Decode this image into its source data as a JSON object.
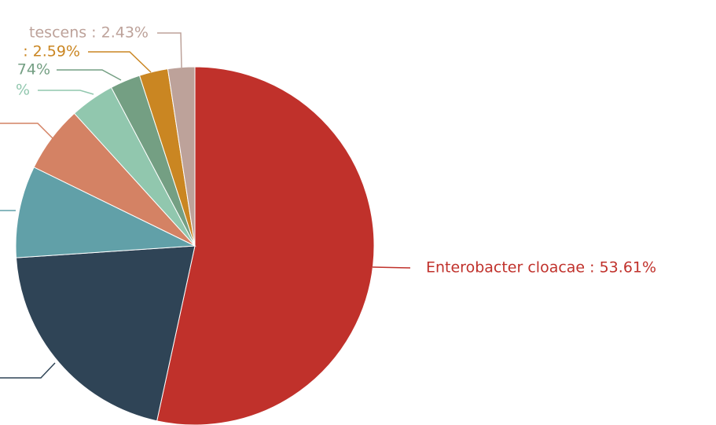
{
  "chart_data": {
    "type": "pie",
    "title": "",
    "slices": [
      {
        "label": "Enterobacter  cloacae : 53.61%",
        "value": 53.61,
        "color": "#c0312b"
      },
      {
        "label": "",
        "value": 20.62,
        "color": "#2f4456"
      },
      {
        "label": "",
        "value": 8.33,
        "color": "#61a0a8"
      },
      {
        "label": "",
        "value": 6.04,
        "color": "#d48264"
      },
      {
        "label": "%",
        "value": 4.03,
        "color": "#91c7ae"
      },
      {
        "label": "74%",
        "value": 2.74,
        "color": "#749f83"
      },
      {
        "label": ": 2.59%",
        "value": 2.59,
        "color": "#ca8622"
      },
      {
        "label": "tescens : 2.43%",
        "value": 2.43,
        "color": "#bda29a"
      }
    ]
  }
}
